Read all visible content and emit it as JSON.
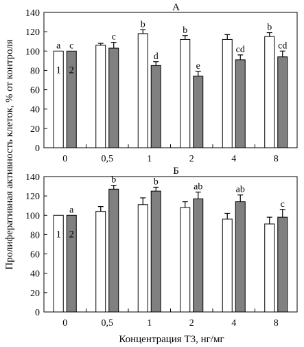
{
  "figure": {
    "ylabel": "Пролиферативная активность клеток, % от контроля",
    "xlabel": "Концентрация Т3, нг/мг"
  },
  "chart_data": [
    {
      "type": "bar",
      "title": "А",
      "categories": [
        "0",
        "0,5",
        "1",
        "2",
        "4",
        "8"
      ],
      "ylim": [
        0,
        140
      ],
      "yticks": [
        0,
        20,
        40,
        60,
        80,
        100,
        120,
        140
      ],
      "grid": false,
      "series": [
        {
          "name": "1",
          "color": "#ffffff",
          "values": [
            100,
            106,
            118,
            112,
            112,
            115
          ],
          "errors": [
            0,
            2,
            4,
            4,
            5,
            4
          ],
          "letters": [
            "a",
            "",
            "b",
            "b",
            "",
            "b"
          ]
        },
        {
          "name": "2",
          "color": "#808080",
          "values": [
            100,
            103,
            85,
            74,
            91,
            94
          ],
          "errors": [
            0,
            6,
            4,
            5,
            5,
            6
          ],
          "letters": [
            "c",
            "c",
            "d",
            "e",
            "cd",
            "cd"
          ]
        }
      ]
    },
    {
      "type": "bar",
      "title": "Б",
      "categories": [
        "0",
        "0,5",
        "1",
        "2",
        "4",
        "8"
      ],
      "ylim": [
        0,
        140
      ],
      "yticks": [
        0,
        20,
        40,
        60,
        80,
        100,
        120,
        140
      ],
      "grid": false,
      "series": [
        {
          "name": "1",
          "color": "#ffffff",
          "values": [
            100,
            104,
            111,
            108,
            96,
            91
          ],
          "errors": [
            0,
            5,
            7,
            6,
            6,
            7
          ],
          "letters": [
            "",
            "",
            "",
            "",
            "",
            ""
          ]
        },
        {
          "name": "2",
          "color": "#808080",
          "values": [
            100,
            127,
            125,
            117,
            114,
            98
          ],
          "errors": [
            0,
            4,
            4,
            7,
            7,
            8
          ],
          "letters": [
            "a",
            "b",
            "b",
            "ab",
            "ab",
            "c"
          ]
        }
      ]
    }
  ]
}
